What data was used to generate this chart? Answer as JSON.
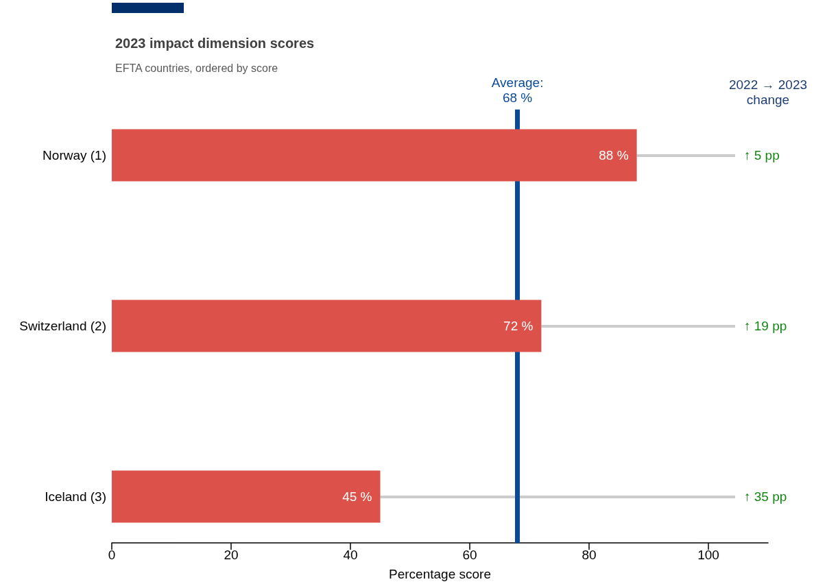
{
  "chart_data": {
    "type": "bar",
    "orientation": "horizontal",
    "title": "2023 impact dimension scores",
    "subtitle": "EFTA countries, ordered by score",
    "xlabel": "Percentage score",
    "categories": [
      "Norway (1)",
      "Switzerland (2)",
      "Iceland (3)"
    ],
    "values": [
      88,
      72,
      45
    ],
    "color": "#dc524a",
    "value_labels": [
      "88 %",
      "72 %",
      "45 %"
    ],
    "xlim": [
      0,
      110
    ],
    "xticks": [
      0,
      20,
      40,
      60,
      80,
      100
    ],
    "ref_lines": [
      {
        "axis": "x",
        "value": 68,
        "label": "Average:\n68 %",
        "color": "#0b4a99"
      }
    ],
    "annotations": [
      "2022 → 2023\nchange",
      {
        "text": "↑ 5 pp",
        "x": 88,
        "y": "Norway (1)"
      },
      {
        "text": "↑ 19 pp",
        "x": 72,
        "y": "Switzerland (2)"
      },
      {
        "text": "↑ 35 pp",
        "x": 45,
        "y": "Iceland (3)"
      }
    ]
  }
}
